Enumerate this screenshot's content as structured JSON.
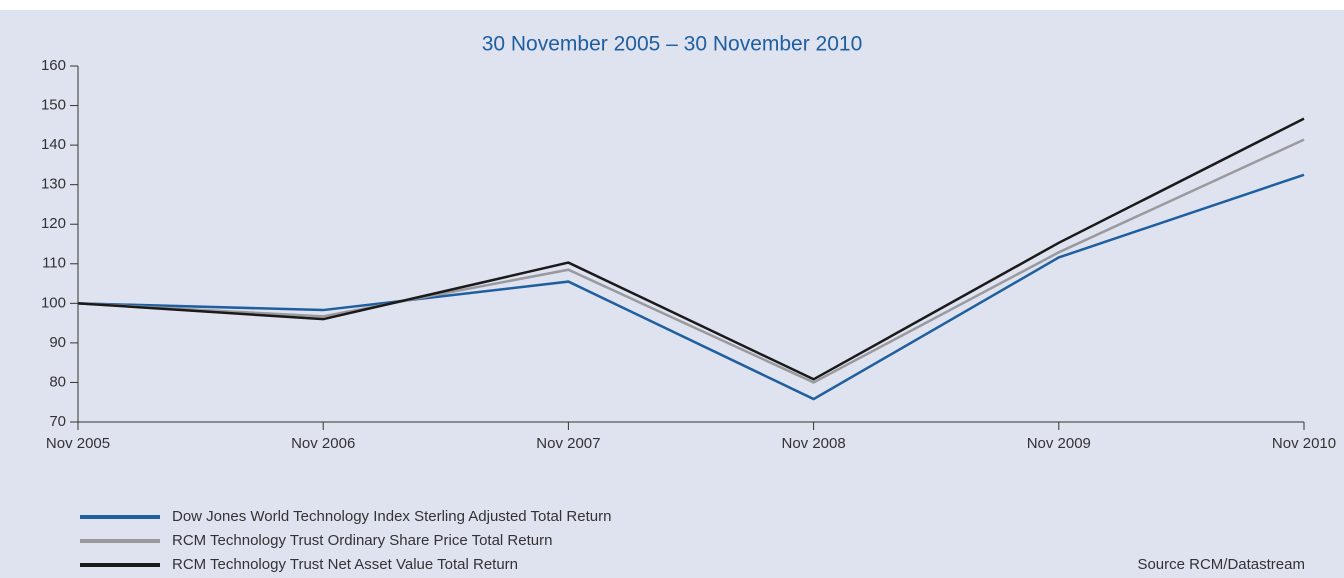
{
  "chart_data": {
    "type": "line",
    "subtitle": "30 November 2005 – 30 November 2010",
    "categories": [
      "Nov 2005",
      "Nov 2006",
      "Nov 2007",
      "Nov 2008",
      "Nov 2009",
      "Nov 2010"
    ],
    "series": [
      {
        "name": "Dow Jones World Technology Index Sterling Adjusted Total Return",
        "color": "#1f5fa0",
        "values": [
          100,
          98.3,
          105.5,
          75.8,
          111.6,
          132.5
        ]
      },
      {
        "name": "RCM Technology Trust Ordinary Share Price Total Return",
        "color": "#9a9a9e",
        "values": [
          100,
          96.7,
          108.5,
          80,
          112.9,
          141.4
        ]
      },
      {
        "name": "RCM Technology Trust Net Asset Value Total Return",
        "color": "#1a1a1a",
        "values": [
          100,
          96,
          110.3,
          80.8,
          115.3,
          146.7
        ]
      }
    ],
    "ylim": [
      70,
      160
    ],
    "yticks": [
      70,
      80,
      90,
      100,
      110,
      120,
      130,
      140,
      150,
      160
    ],
    "grid": false,
    "legend": "bottom-left",
    "source": "Source RCM/Datastream"
  }
}
